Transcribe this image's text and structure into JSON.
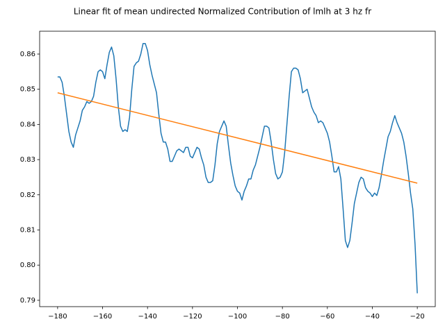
{
  "chart_data": {
    "type": "line",
    "title": "Linear fit of mean undirected Normalized Contribution of lmlh at 3 hz fr",
    "xlim": [
      -188,
      -12
    ],
    "ylim": [
      0.7882,
      0.8665
    ],
    "xticks": [
      {
        "value": -180,
        "label": "−180"
      },
      {
        "value": -160,
        "label": "−160"
      },
      {
        "value": -140,
        "label": "−140"
      },
      {
        "value": -120,
        "label": "−120"
      },
      {
        "value": -100,
        "label": "−100"
      },
      {
        "value": -80,
        "label": "−80"
      },
      {
        "value": -60,
        "label": "−60"
      },
      {
        "value": -40,
        "label": "−40"
      },
      {
        "value": -20,
        "label": "−20"
      }
    ],
    "yticks": [
      0.79,
      0.8,
      0.81,
      0.82,
      0.83,
      0.84,
      0.85,
      0.86
    ],
    "series": [
      {
        "color": "#1f77b4",
        "x": [
          -180,
          -179,
          -178,
          -177,
          -176,
          -175,
          -174,
          -173,
          -172,
          -171,
          -170,
          -169,
          -168,
          -167,
          -166,
          -165,
          -164,
          -163,
          -162,
          -161,
          -160,
          -159,
          -158,
          -157,
          -156,
          -155,
          -154,
          -153,
          -152,
          -151,
          -150,
          -149,
          -148,
          -147,
          -146,
          -145,
          -144,
          -143,
          -142,
          -141,
          -140,
          -139,
          -138,
          -137,
          -136,
          -135,
          -134,
          -133,
          -132,
          -131,
          -130,
          -129,
          -128,
          -127,
          -126,
          -125,
          -124,
          -123,
          -122,
          -121,
          -120,
          -119,
          -118,
          -117,
          -116,
          -115,
          -114,
          -113,
          -112,
          -111,
          -110,
          -109,
          -108,
          -107,
          -106,
          -105,
          -104,
          -103,
          -102,
          -101,
          -100,
          -99,
          -98,
          -97,
          -96,
          -95,
          -94,
          -93,
          -92,
          -91,
          -90,
          -89,
          -88,
          -87,
          -86,
          -85,
          -84,
          -83,
          -82,
          -81,
          -80,
          -79,
          -78,
          -77,
          -76,
          -75,
          -74,
          -73,
          -72,
          -71,
          -70,
          -69,
          -68,
          -67,
          -66,
          -65,
          -64,
          -63,
          -62,
          -61,
          -60,
          -59,
          -58,
          -57,
          -56,
          -55,
          -54,
          -53,
          -52,
          -51,
          -50,
          -49,
          -48,
          -47,
          -46,
          -45,
          -44,
          -43,
          -42,
          -41,
          -40,
          -39,
          -38,
          -37,
          -36,
          -35,
          -34,
          -33,
          -32,
          -31,
          -30,
          -29,
          -28,
          -27,
          -26,
          -25,
          -24,
          -23,
          -22,
          -21,
          -20
        ],
        "values": [
          0.8535,
          0.8535,
          0.852,
          0.848,
          0.843,
          0.838,
          0.835,
          0.8335,
          0.837,
          0.839,
          0.841,
          0.844,
          0.845,
          0.8465,
          0.846,
          0.8465,
          0.848,
          0.852,
          0.855,
          0.8555,
          0.855,
          0.853,
          0.857,
          0.8605,
          0.862,
          0.8595,
          0.853,
          0.845,
          0.8395,
          0.838,
          0.8385,
          0.838,
          0.842,
          0.85,
          0.8565,
          0.8575,
          0.858,
          0.86,
          0.863,
          0.863,
          0.861,
          0.857,
          0.854,
          0.8515,
          0.849,
          0.843,
          0.8375,
          0.835,
          0.835,
          0.833,
          0.8295,
          0.8295,
          0.831,
          0.8325,
          0.833,
          0.8325,
          0.832,
          0.8335,
          0.8335,
          0.831,
          0.8305,
          0.832,
          0.8335,
          0.833,
          0.8305,
          0.8285,
          0.825,
          0.8235,
          0.8235,
          0.824,
          0.8285,
          0.8345,
          0.838,
          0.8395,
          0.841,
          0.8395,
          0.834,
          0.829,
          0.8255,
          0.8225,
          0.821,
          0.8205,
          0.8185,
          0.821,
          0.8225,
          0.8245,
          0.8245,
          0.827,
          0.8285,
          0.831,
          0.8335,
          0.8365,
          0.8395,
          0.8395,
          0.839,
          0.835,
          0.83,
          0.826,
          0.8245,
          0.825,
          0.8265,
          0.832,
          0.84,
          0.848,
          0.855,
          0.856,
          0.856,
          0.8555,
          0.853,
          0.849,
          0.8495,
          0.85,
          0.8475,
          0.845,
          0.8435,
          0.8425,
          0.8405,
          0.841,
          0.8405,
          0.839,
          0.8375,
          0.835,
          0.831,
          0.8265,
          0.8265,
          0.828,
          0.8245,
          0.816,
          0.807,
          0.805,
          0.807,
          0.812,
          0.8175,
          0.8205,
          0.8235,
          0.825,
          0.8245,
          0.822,
          0.821,
          0.8205,
          0.8195,
          0.8205,
          0.8198,
          0.822,
          0.8255,
          0.8295,
          0.833,
          0.8365,
          0.838,
          0.8405,
          0.8425,
          0.8405,
          0.839,
          0.8375,
          0.835,
          0.831,
          0.826,
          0.8205,
          0.816,
          0.806,
          0.792
        ]
      },
      {
        "color": "#ff7f0e",
        "x": [
          -180,
          -20
        ],
        "values": [
          0.849,
          0.8233
        ]
      }
    ]
  }
}
